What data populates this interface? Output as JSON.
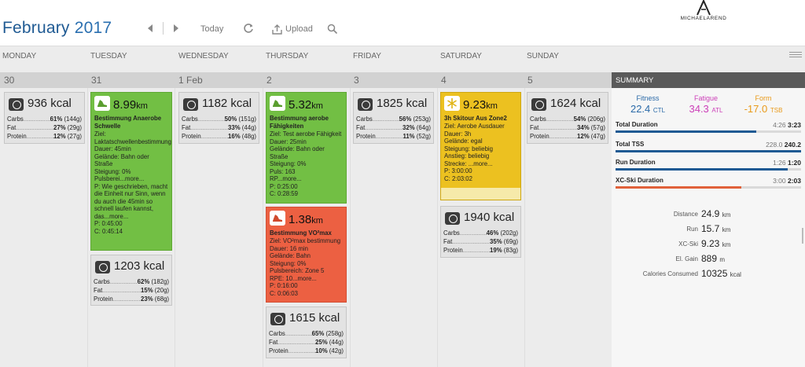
{
  "header": {
    "month": "February",
    "year": "2017",
    "today_label": "Today",
    "upload_label": "Upload",
    "logo_text": "MICHAELAREND"
  },
  "days": [
    "MONDAY",
    "TUESDAY",
    "WEDNESDAY",
    "THURSDAY",
    "FRIDAY",
    "SATURDAY",
    "SUNDAY"
  ],
  "dates": [
    "30",
    "31",
    "1 Feb",
    "2",
    "3",
    "4",
    "5"
  ],
  "nutrition": [
    {
      "kcal": "936 kcal",
      "rows": [
        {
          "label": "Carbs",
          "pct": "61%",
          "g": "(144g)"
        },
        {
          "label": "Fat",
          "pct": "27%",
          "g": "(29g)"
        },
        {
          "label": "Protein",
          "pct": "12%",
          "g": "(27g)"
        }
      ]
    },
    {
      "kcal": "1203 kcal",
      "rows": [
        {
          "label": "Carbs",
          "pct": "62%",
          "g": "(182g)"
        },
        {
          "label": "Fat",
          "pct": "15%",
          "g": "(20g)"
        },
        {
          "label": "Protein",
          "pct": "23%",
          "g": "(68g)"
        }
      ]
    },
    {
      "kcal": "1182 kcal",
      "rows": [
        {
          "label": "Carbs",
          "pct": "50%",
          "g": "(151g)"
        },
        {
          "label": "Fat",
          "pct": "33%",
          "g": "(44g)"
        },
        {
          "label": "Protein",
          "pct": "16%",
          "g": "(48g)"
        }
      ]
    },
    {
      "kcal": "1615 kcal",
      "rows": [
        {
          "label": "Carbs",
          "pct": "65%",
          "g": "(258g)"
        },
        {
          "label": "Fat",
          "pct": "25%",
          "g": "(44g)"
        },
        {
          "label": "Protein",
          "pct": "10%",
          "g": "(42g)"
        }
      ]
    },
    {
      "kcal": "1825 kcal",
      "rows": [
        {
          "label": "Carbs",
          "pct": "56%",
          "g": "(253g)"
        },
        {
          "label": "Fat",
          "pct": "32%",
          "g": "(64g)"
        },
        {
          "label": "Protein",
          "pct": "11%",
          "g": "(52g)"
        }
      ]
    },
    {
      "kcal": "1940 kcal",
      "rows": [
        {
          "label": "Carbs",
          "pct": "46%",
          "g": "(202g)"
        },
        {
          "label": "Fat",
          "pct": "35%",
          "g": "(69g)"
        },
        {
          "label": "Protein",
          "pct": "19%",
          "g": "(83g)"
        }
      ]
    },
    {
      "kcal": "1624 kcal",
      "rows": [
        {
          "label": "Carbs",
          "pct": "54%",
          "g": "(206g)"
        },
        {
          "label": "Fat",
          "pct": "34%",
          "g": "(57g)"
        },
        {
          "label": "Protein",
          "pct": "12%",
          "g": "(47g)"
        }
      ]
    }
  ],
  "workouts": {
    "tue": {
      "distance": "8.99",
      "unit": "km",
      "title": "Bestimmung Anaerobe Schwelle",
      "desc": "Ziel:\nLaktatschwellenbestimmung\nDauer: 45min\nGelände: Bahn oder Straße\nSteigung: 0%\nPulsberei...more...\nP: Wie geschrieben, macht die Einheit nur Sinn, wenn du auch die 45min so schnell laufen kannst, das...more...\nP: 0:45:00\nC: 0:45:14"
    },
    "thu1": {
      "distance": "5.32",
      "unit": "km",
      "title": "Bestimmung aerobe Fähigkeiten",
      "desc": "Ziel: Test aerobe Fähigkeit\nDauer: 25min\nGelände: Bahn oder Straße\nSteigung: 0%\nPuls: 163\nRP...more...\nP: 0:25:00\nC: 0:28:59"
    },
    "thu2": {
      "distance": "1.38",
      "unit": "km",
      "title": "Bestimmung VO²max",
      "desc": "Ziel: VO²max bestimmung\nDauer: 16 min\nGelände: Bahn\nSteigung: 0%\nPulsbereich: Zone 5\nRPE: 10...more...\nP: 0:16:00\nC: 0:06:03"
    },
    "sat": {
      "distance": "9.23",
      "unit": "km",
      "title": "3h Skitour Aus Zone2",
      "desc": "Ziel: Aerobe Ausdauer\nDauer: 3h\nGelände: egal\nSteigung: beliebig\nAnstieg: beliebig\nStrecke: ...more...\nP: 3:00:00\nC: 2:03:02"
    }
  },
  "summary": {
    "heading": "SUMMARY",
    "fitness": {
      "label": "Fitness",
      "value": "22.4",
      "unit": "CTL"
    },
    "fatigue": {
      "label": "Fatigue",
      "value": "34.3",
      "unit": "ATL"
    },
    "form": {
      "label": "Form",
      "value": "-17.0",
      "unit": "TSB"
    },
    "bars": [
      {
        "label": "Total Duration",
        "planned": "4:26",
        "completed": "3:23",
        "fraction": 0.76,
        "color": "#1f5a93"
      },
      {
        "label": "Total TSS",
        "planned": "228.0",
        "completed": "240.2",
        "fraction": 1.0,
        "color": "#1f5a93"
      },
      {
        "label": "Run Duration",
        "planned": "1:26",
        "completed": "1:20",
        "fraction": 0.93,
        "color": "#1f5a93"
      },
      {
        "label": "XC-Ski Duration",
        "planned": "3:00",
        "completed": "2:03",
        "fraction": 0.68,
        "color": "#e0613a"
      }
    ],
    "totals": [
      {
        "label": "Distance",
        "value": "24.9",
        "unit": "km"
      },
      {
        "label": "Run",
        "value": "15.7",
        "unit": "km"
      },
      {
        "label": "XC-Ski",
        "value": "9.23",
        "unit": "km"
      },
      {
        "label": "El. Gain",
        "value": "889",
        "unit": "m"
      },
      {
        "label": "Calories Consumed",
        "value": "10325",
        "unit": "kcal"
      }
    ]
  },
  "colors": {
    "title": "#1f5a93",
    "run_green": "#72bf44",
    "run_red": "#ec6042",
    "ski_yellow": "#ecc120"
  }
}
